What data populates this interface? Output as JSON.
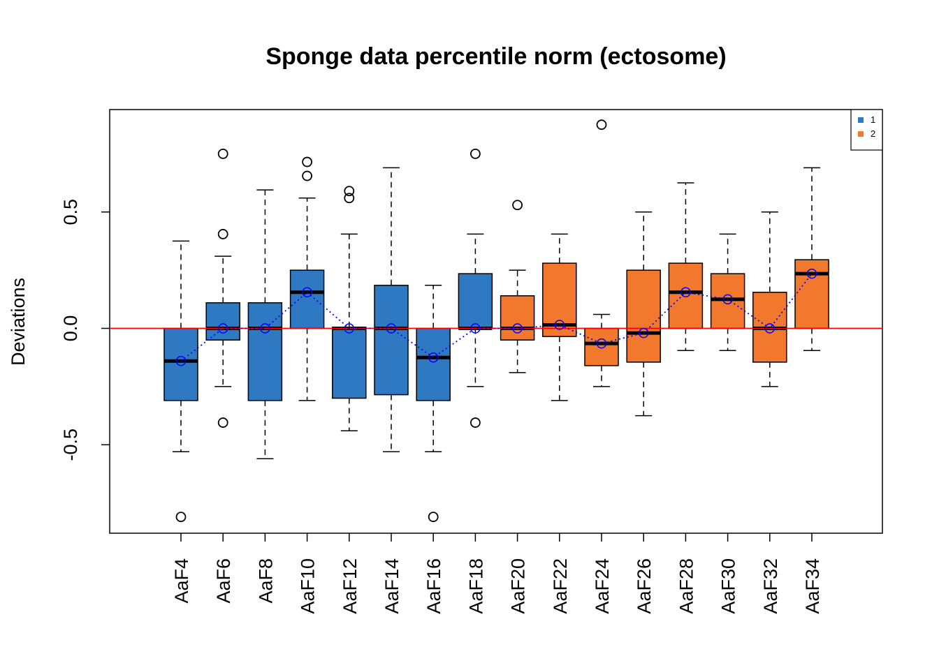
{
  "chart_data": {
    "type": "boxplot",
    "title": "Sponge data percentile norm (ectosome)",
    "ylabel": "Deviations",
    "xlabel": "",
    "ylim": [
      -0.88,
      0.94
    ],
    "yticks": [
      -0.5,
      0.0,
      0.5
    ],
    "ytick_labels": [
      "-0.5",
      "0.0",
      "0.5"
    ],
    "reference_line": {
      "y": 0.0,
      "color": "#ff0000"
    },
    "mean_line_color": "#0000ff",
    "legend": {
      "position": "top-right",
      "entries": [
        {
          "label": "1",
          "color": "#2e79c2"
        },
        {
          "label": "2",
          "color": "#f2782d"
        }
      ]
    },
    "categories": [
      "AaF4",
      "AaF6",
      "AaF8",
      "AaF10",
      "AaF12",
      "AaF14",
      "AaF16",
      "AaF18",
      "AaF20",
      "AaF22",
      "AaF24",
      "AaF26",
      "AaF28",
      "AaF30",
      "AaF32",
      "AaF34"
    ],
    "boxes": [
      {
        "group": "1",
        "wlo": -0.53,
        "q1": -0.31,
        "med": -0.14,
        "q3": 0.0,
        "whi": 0.375,
        "mean": -0.14,
        "outliers": [
          -0.81
        ]
      },
      {
        "group": "1",
        "wlo": -0.25,
        "q1": -0.05,
        "med": 0.0,
        "q3": 0.11,
        "whi": 0.31,
        "mean": 0.0,
        "outliers": [
          0.75,
          0.405,
          -0.405
        ]
      },
      {
        "group": "1",
        "wlo": -0.56,
        "q1": -0.31,
        "med": 0.0,
        "q3": 0.11,
        "whi": 0.595,
        "mean": 0.0,
        "outliers": []
      },
      {
        "group": "1",
        "wlo": -0.31,
        "q1": 0.0,
        "med": 0.155,
        "q3": 0.25,
        "whi": 0.56,
        "mean": 0.155,
        "outliers": [
          0.715,
          0.655
        ]
      },
      {
        "group": "1",
        "wlo": -0.44,
        "q1": -0.3,
        "med": 0.0,
        "q3": 0.005,
        "whi": 0.405,
        "mean": 0.0,
        "outliers": [
          0.59,
          0.56
        ]
      },
      {
        "group": "1",
        "wlo": -0.53,
        "q1": -0.285,
        "med": 0.0,
        "q3": 0.185,
        "whi": 0.69,
        "mean": 0.0,
        "outliers": []
      },
      {
        "group": "1",
        "wlo": -0.53,
        "q1": -0.31,
        "med": -0.125,
        "q3": 0.0,
        "whi": 0.185,
        "mean": -0.125,
        "outliers": [
          -0.81
        ]
      },
      {
        "group": "1",
        "wlo": -0.25,
        "q1": 0.0,
        "med": 0.0,
        "q3": 0.235,
        "whi": 0.405,
        "mean": 0.0,
        "outliers": [
          0.75,
          -0.405
        ]
      },
      {
        "group": "2",
        "wlo": -0.19,
        "q1": -0.05,
        "med": 0.0,
        "q3": 0.14,
        "whi": 0.25,
        "mean": 0.0,
        "outliers": [
          0.53
        ]
      },
      {
        "group": "2",
        "wlo": -0.31,
        "q1": -0.035,
        "med": 0.015,
        "q3": 0.28,
        "whi": 0.405,
        "mean": 0.015,
        "outliers": []
      },
      {
        "group": "2",
        "wlo": -0.25,
        "q1": -0.16,
        "med": -0.065,
        "q3": 0.0,
        "whi": 0.06,
        "mean": -0.065,
        "outliers": [
          0.875
        ]
      },
      {
        "group": "2",
        "wlo": -0.375,
        "q1": -0.145,
        "med": -0.02,
        "q3": 0.25,
        "whi": 0.5,
        "mean": -0.02,
        "outliers": []
      },
      {
        "group": "2",
        "wlo": -0.095,
        "q1": 0.0,
        "med": 0.155,
        "q3": 0.28,
        "whi": 0.625,
        "mean": 0.155,
        "outliers": []
      },
      {
        "group": "2",
        "wlo": -0.095,
        "q1": 0.0,
        "med": 0.125,
        "q3": 0.235,
        "whi": 0.405,
        "mean": 0.125,
        "outliers": []
      },
      {
        "group": "2",
        "wlo": -0.25,
        "q1": -0.145,
        "med": 0.0,
        "q3": 0.155,
        "whi": 0.5,
        "mean": 0.0,
        "outliers": []
      },
      {
        "group": "2",
        "wlo": -0.095,
        "q1": 0.0,
        "med": 0.235,
        "q3": 0.295,
        "whi": 0.69,
        "mean": 0.235,
        "outliers": []
      }
    ]
  }
}
